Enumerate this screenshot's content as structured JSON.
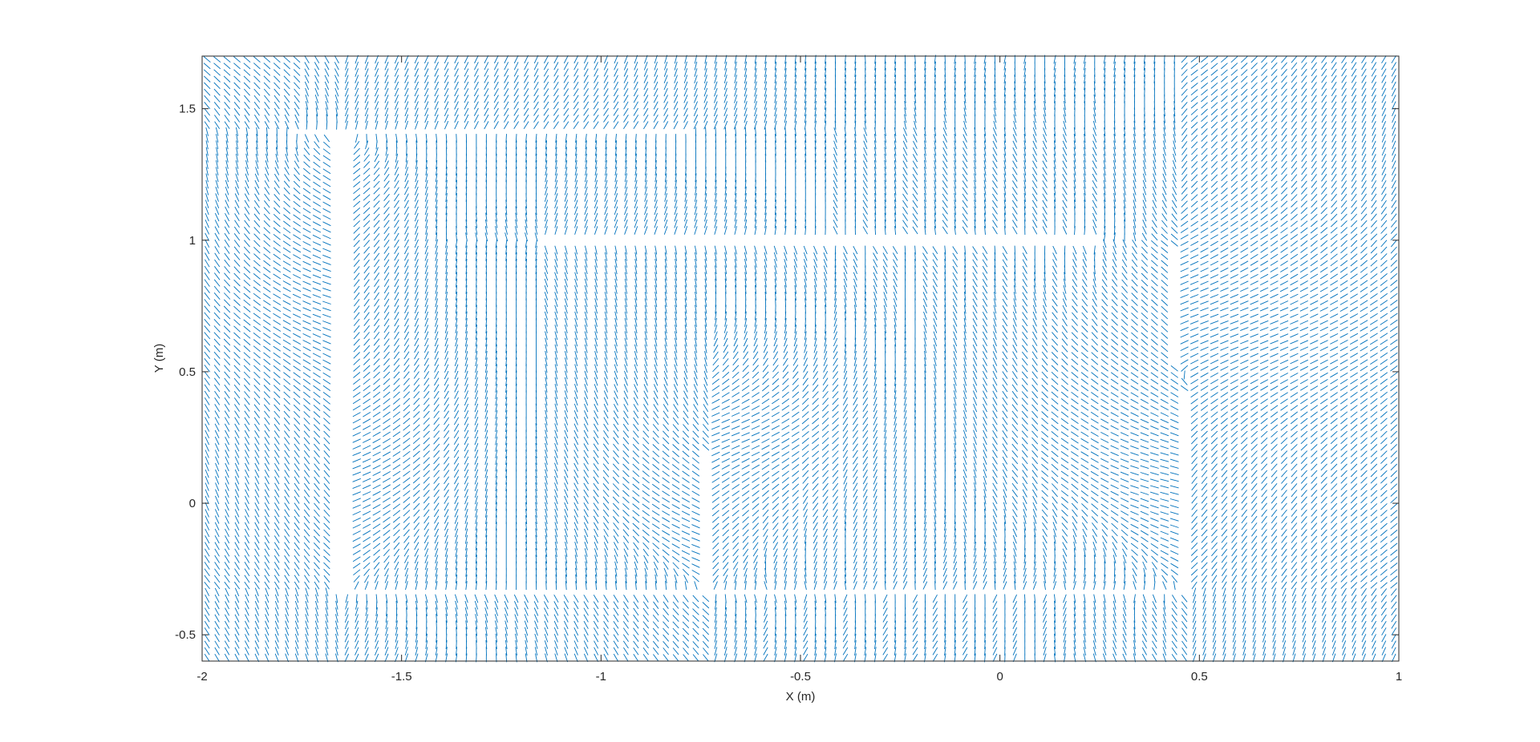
{
  "chart_data": {
    "type": "quiver",
    "title": "",
    "xlabel": "X (m)",
    "ylabel": "Y (m)",
    "xlim": [
      -2,
      1
    ],
    "ylim": [
      -0.6,
      1.7
    ],
    "xticks": [
      -2,
      -1.5,
      -1,
      -0.5,
      0,
      0.5,
      1
    ],
    "xtick_labels": [
      "-2",
      "-1.5",
      "-1",
      "-0.5",
      "0",
      "0.5",
      "1"
    ],
    "yticks": [
      -0.5,
      0,
      0.5,
      1,
      1.5
    ],
    "ytick_labels": [
      "-0.5",
      "0",
      "0.5",
      "1",
      "1.5"
    ],
    "grid": false,
    "legend": "none",
    "color": "#0072BD",
    "arrow_spacing_m": 0.025,
    "obstacles": [
      {
        "x1": -1.75,
        "y1": 1.42,
        "x2": -0.8,
        "y2": 1.42
      },
      {
        "x1": -1.65,
        "y1": 1.38,
        "x2": -1.65,
        "y2": -0.32
      },
      {
        "x1": -1.15,
        "y1": 1.0,
        "x2": 0.25,
        "y2": 1.0
      },
      {
        "x1": -1.65,
        "y1": -0.33,
        "x2": 0.47,
        "y2": -0.33
      },
      {
        "x1": -0.73,
        "y1": 0.18,
        "x2": -0.73,
        "y2": -0.33
      },
      {
        "x1": 0.44,
        "y1": 0.97,
        "x2": 0.44,
        "y2": 0.55
      },
      {
        "x1": 0.47,
        "y1": 0.42,
        "x2": 0.47,
        "y2": -0.33
      }
    ]
  }
}
